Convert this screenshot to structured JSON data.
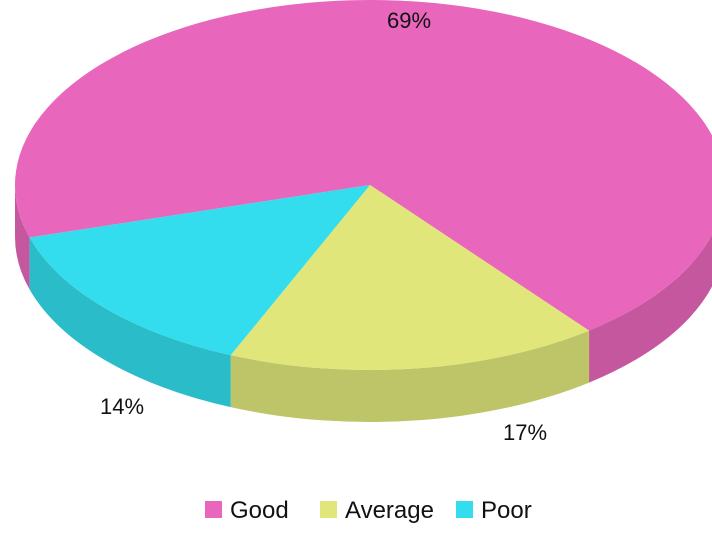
{
  "chart_data": {
    "type": "pie",
    "style": "3d",
    "categories": [
      "Good",
      "Average",
      "Poor"
    ],
    "values": [
      69,
      17,
      14
    ],
    "data_labels": [
      "69%",
      "17%",
      "14%"
    ],
    "colors": [
      "#e866bb",
      "#e0e67a",
      "#33dded"
    ],
    "legend": {
      "position": "bottom",
      "items": [
        "Good",
        "Average",
        "Poor"
      ]
    }
  }
}
